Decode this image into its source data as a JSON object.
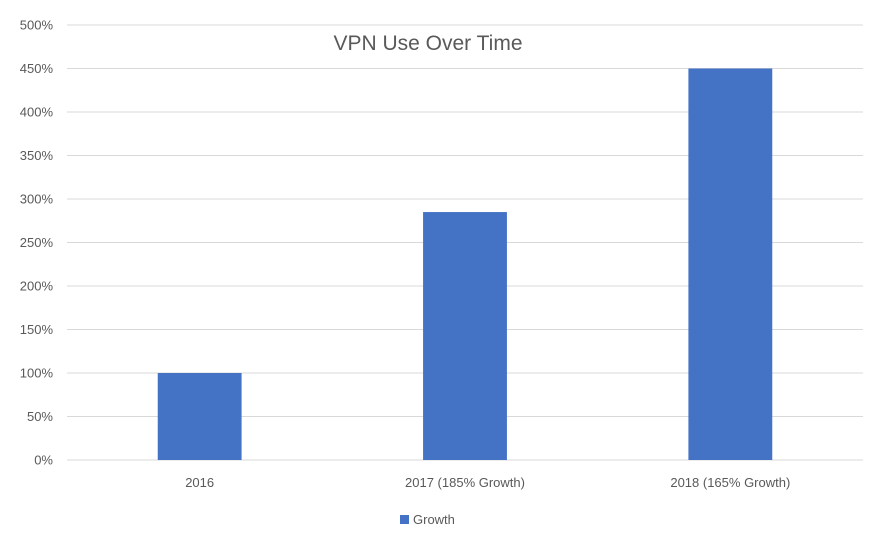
{
  "chart_data": {
    "type": "bar",
    "title": "VPN Use Over Time",
    "categories": [
      "2016",
      "2017 (185% Growth)",
      "2018 (165% Growth)"
    ],
    "series": [
      {
        "name": "Growth",
        "values": [
          100,
          285,
          450
        ],
        "color": "#4472C4"
      }
    ],
    "ylim": [
      0,
      500
    ],
    "yticks": [
      0,
      50,
      100,
      150,
      200,
      250,
      300,
      350,
      400,
      450,
      500
    ],
    "ytick_format": "percent",
    "grid": true,
    "legend": "bottom"
  }
}
